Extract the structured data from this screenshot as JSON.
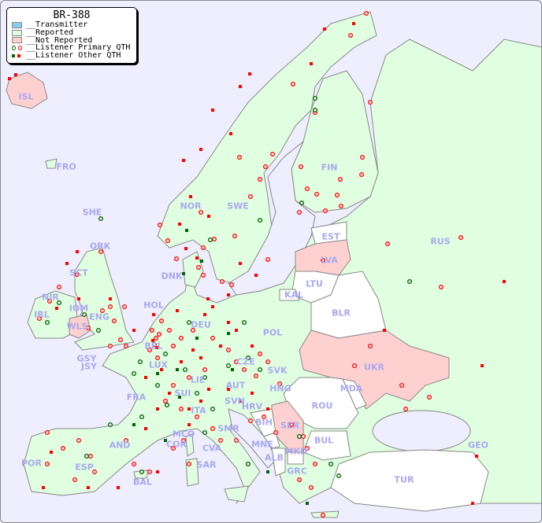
{
  "legend": {
    "title": "BR-388",
    "items": [
      {
        "label": "__Transmitter",
        "color": "#87ceeb"
      },
      {
        "label": "__Reported",
        "color": "#e0ffe0"
      },
      {
        "label": "__Not Reported",
        "color": "#ffd0d0"
      },
      {
        "label": "__Listener Primary QTH",
        "colors": [
          "#006400",
          "#ff0000"
        ]
      },
      {
        "label": "__Listener Other QTH",
        "colors": [
          "#006400",
          "#ff0000"
        ]
      }
    ]
  },
  "colors": {
    "sea": "#eeeeff",
    "reported": "#e0ffe0",
    "not_reported": "#ffd0d0",
    "no_data": "#ffffff",
    "border": "#888888",
    "label": "#a8a8f0"
  },
  "countries": [
    {
      "code": "ISL",
      "status": "not_reported"
    },
    {
      "code": "FRO",
      "status": "reported"
    },
    {
      "code": "SHE",
      "status": "reported"
    },
    {
      "code": "ORK",
      "status": "reported"
    },
    {
      "code": "NOR",
      "status": "reported"
    },
    {
      "code": "SWE",
      "status": "reported"
    },
    {
      "code": "FIN",
      "status": "reported"
    },
    {
      "code": "EST",
      "status": "no_data"
    },
    {
      "code": "RUS",
      "status": "reported"
    },
    {
      "code": "LVA",
      "status": "not_reported"
    },
    {
      "code": "LTU",
      "status": "no_data"
    },
    {
      "code": "KAL",
      "status": "no_data"
    },
    {
      "code": "BLR",
      "status": "no_data"
    },
    {
      "code": "DNK",
      "status": "reported"
    },
    {
      "code": "SCT",
      "status": "reported"
    },
    {
      "code": "NIR",
      "status": "reported"
    },
    {
      "code": "IOM",
      "status": "reported"
    },
    {
      "code": "IRL",
      "status": "reported"
    },
    {
      "code": "WLS",
      "status": "not_reported"
    },
    {
      "code": "ENG",
      "status": "reported"
    },
    {
      "code": "HOL",
      "status": "reported"
    },
    {
      "code": "DEU",
      "status": "reported"
    },
    {
      "code": "POL",
      "status": "reported"
    },
    {
      "code": "UKR",
      "status": "not_reported"
    },
    {
      "code": "BEL",
      "status": "reported"
    },
    {
      "code": "LUX",
      "status": "reported"
    },
    {
      "code": "GSY",
      "status": "reported"
    },
    {
      "code": "JSY",
      "status": "reported"
    },
    {
      "code": "CZE",
      "status": "reported"
    },
    {
      "code": "SVK",
      "status": "reported"
    },
    {
      "code": "FRA",
      "status": "reported"
    },
    {
      "code": "LIE",
      "status": "reported"
    },
    {
      "code": "AUT",
      "status": "reported"
    },
    {
      "code": "HNG",
      "status": "reported"
    },
    {
      "code": "MDA",
      "status": "no_data"
    },
    {
      "code": "SUI",
      "status": "reported"
    },
    {
      "code": "SVN",
      "status": "reported"
    },
    {
      "code": "HRV",
      "status": "reported"
    },
    {
      "code": "ROU",
      "status": "no_data"
    },
    {
      "code": "ITA",
      "status": "reported"
    },
    {
      "code": "BIH",
      "status": "no_data"
    },
    {
      "code": "SER",
      "status": "not_reported"
    },
    {
      "code": "SMR",
      "status": "reported"
    },
    {
      "code": "MCO",
      "status": "reported"
    },
    {
      "code": "COR",
      "status": "reported"
    },
    {
      "code": "CVA",
      "status": "reported"
    },
    {
      "code": "MNE",
      "status": "no_data"
    },
    {
      "code": "BUL",
      "status": "no_data"
    },
    {
      "code": "GEO",
      "status": "reported"
    },
    {
      "code": "AND",
      "status": "reported"
    },
    {
      "code": "MKD",
      "status": "no_data"
    },
    {
      "code": "ALB",
      "status": "no_data"
    },
    {
      "code": "POR",
      "status": "reported"
    },
    {
      "code": "ESP",
      "status": "reported"
    },
    {
      "code": "SAR",
      "status": "reported"
    },
    {
      "code": "GRC",
      "status": "reported"
    },
    {
      "code": "BAL",
      "status": "reported"
    },
    {
      "code": "TUR",
      "status": "no_data"
    }
  ]
}
